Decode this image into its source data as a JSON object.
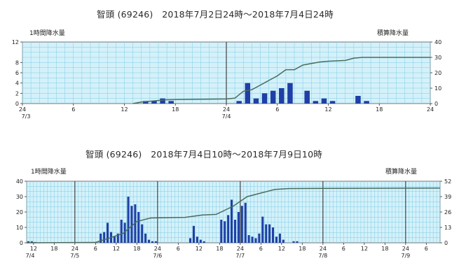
{
  "colors": {
    "plot_bg": "#d4f1fa",
    "grid": "#7fcde4",
    "bar": "#1f3fa6",
    "cumulative_line": "#4b6b5e",
    "day_divider": "#333333"
  },
  "chart_data": [
    {
      "type": "bar",
      "title": "智頭 (69246)　2018年7月2日24時～2018年7月4日24時",
      "left_axis_label": "1時間降水量",
      "right_axis_label": "積算降水量",
      "x_start_hour": 0,
      "x_end_hour": 48,
      "x_tick_hours": [
        0,
        6,
        12,
        18,
        24,
        30,
        36,
        42,
        48
      ],
      "x_tick_labels": [
        "24",
        "6",
        "12",
        "18",
        "24",
        "6",
        "12",
        "18",
        "24"
      ],
      "date_labels": [
        {
          "hour": 0,
          "text": "7/3"
        },
        {
          "hour": 24,
          "text": "7/4"
        }
      ],
      "day_dividers_hours": [
        24
      ],
      "ylim_left": [
        0,
        12
      ],
      "y_ticks_left": [
        0,
        2,
        4,
        6,
        8,
        12
      ],
      "ylim_right": [
        0,
        40
      ],
      "y_ticks_right": [
        0,
        10,
        20,
        30,
        40
      ],
      "bars": [
        {
          "hour": 14,
          "value": 0.5
        },
        {
          "hour": 15,
          "value": 0.5
        },
        {
          "hour": 16,
          "value": 1
        },
        {
          "hour": 17,
          "value": 0.5
        },
        {
          "hour": 25,
          "value": 0.5
        },
        {
          "hour": 26,
          "value": 4
        },
        {
          "hour": 27,
          "value": 1
        },
        {
          "hour": 28,
          "value": 2
        },
        {
          "hour": 29,
          "value": 2.5
        },
        {
          "hour": 30,
          "value": 3
        },
        {
          "hour": 31,
          "value": 4
        },
        {
          "hour": 33,
          "value": 2.5
        },
        {
          "hour": 34,
          "value": 0.5
        },
        {
          "hour": 35,
          "value": 1
        },
        {
          "hour": 36,
          "value": 0.5
        },
        {
          "hour": 39,
          "value": 1.5
        },
        {
          "hour": 40,
          "value": 0.5
        }
      ],
      "cumulative": [
        {
          "hour": 13,
          "value": 0
        },
        {
          "hour": 14,
          "value": 1
        },
        {
          "hour": 16,
          "value": 2
        },
        {
          "hour": 17,
          "value": 2.5
        },
        {
          "hour": 24,
          "value": 3
        },
        {
          "hour": 25,
          "value": 3.5
        },
        {
          "hour": 26,
          "value": 8
        },
        {
          "hour": 27,
          "value": 9
        },
        {
          "hour": 28,
          "value": 12
        },
        {
          "hour": 29,
          "value": 15
        },
        {
          "hour": 30,
          "value": 18
        },
        {
          "hour": 31,
          "value": 22
        },
        {
          "hour": 32,
          "value": 22
        },
        {
          "hour": 33,
          "value": 25
        },
        {
          "hour": 34,
          "value": 26
        },
        {
          "hour": 35,
          "value": 27
        },
        {
          "hour": 36,
          "value": 27.5
        },
        {
          "hour": 38,
          "value": 28
        },
        {
          "hour": 39,
          "value": 29.5
        },
        {
          "hour": 40,
          "value": 30
        },
        {
          "hour": 48,
          "value": 30
        }
      ]
    },
    {
      "type": "bar",
      "title": "智頭 (69246)　2018年7月4日10時～2018年7月9日10時",
      "left_axis_label": "1時間降水量",
      "right_axis_label": "積算降水量",
      "x_start_hour": 10,
      "x_end_hour": 130,
      "x_tick_hours": [
        12,
        18,
        24,
        30,
        36,
        42,
        48,
        54,
        60,
        66,
        72,
        78,
        84,
        90,
        96,
        102,
        108,
        114,
        120,
        126
      ],
      "x_tick_labels": [
        "12",
        "18",
        "24",
        "6",
        "12",
        "18",
        "24",
        "6",
        "12",
        "18",
        "24",
        "6",
        "12",
        "18",
        "24",
        "6",
        "12",
        "18",
        "24",
        "6"
      ],
      "date_labels": [
        {
          "hour": 10,
          "text": "7/4"
        },
        {
          "hour": 24,
          "text": "7/5"
        },
        {
          "hour": 48,
          "text": "7/6"
        },
        {
          "hour": 72,
          "text": "7/7"
        },
        {
          "hour": 96,
          "text": "7/8"
        },
        {
          "hour": 120,
          "text": "7/9"
        }
      ],
      "day_dividers_hours": [
        24,
        48,
        72,
        96,
        120
      ],
      "ylim_left": [
        0,
        40
      ],
      "y_ticks_left": [
        0,
        10,
        20,
        30,
        40
      ],
      "ylim_right": [
        0,
        520
      ],
      "y_ticks_right": [
        0,
        130,
        260,
        390,
        520
      ],
      "y_tick_labels_right": [
        "0",
        "13",
        "26",
        "39",
        "52"
      ],
      "bars": [
        {
          "hour": 10,
          "value": 1
        },
        {
          "hour": 11,
          "value": 1
        },
        {
          "hour": 12,
          "value": 0.5
        },
        {
          "hour": 31,
          "value": 6
        },
        {
          "hour": 32,
          "value": 7
        },
        {
          "hour": 33,
          "value": 13
        },
        {
          "hour": 34,
          "value": 7
        },
        {
          "hour": 35,
          "value": 4
        },
        {
          "hour": 36,
          "value": 6
        },
        {
          "hour": 37,
          "value": 15
        },
        {
          "hour": 38,
          "value": 13
        },
        {
          "hour": 39,
          "value": 30
        },
        {
          "hour": 40,
          "value": 24
        },
        {
          "hour": 41,
          "value": 25
        },
        {
          "hour": 42,
          "value": 20
        },
        {
          "hour": 43,
          "value": 12
        },
        {
          "hour": 44,
          "value": 6
        },
        {
          "hour": 45,
          "value": 2
        },
        {
          "hour": 46,
          "value": 1
        },
        {
          "hour": 47,
          "value": 1
        },
        {
          "hour": 57,
          "value": 3
        },
        {
          "hour": 58,
          "value": 11
        },
        {
          "hour": 59,
          "value": 4
        },
        {
          "hour": 60,
          "value": 2
        },
        {
          "hour": 61,
          "value": 1
        },
        {
          "hour": 66,
          "value": 15
        },
        {
          "hour": 67,
          "value": 14
        },
        {
          "hour": 68,
          "value": 18
        },
        {
          "hour": 69,
          "value": 28
        },
        {
          "hour": 70,
          "value": 15
        },
        {
          "hour": 71,
          "value": 20
        },
        {
          "hour": 72,
          "value": 24
        },
        {
          "hour": 73,
          "value": 26
        },
        {
          "hour": 74,
          "value": 5
        },
        {
          "hour": 75,
          "value": 4
        },
        {
          "hour": 76,
          "value": 3
        },
        {
          "hour": 77,
          "value": 6
        },
        {
          "hour": 78,
          "value": 17
        },
        {
          "hour": 79,
          "value": 12
        },
        {
          "hour": 80,
          "value": 12
        },
        {
          "hour": 81,
          "value": 10
        },
        {
          "hour": 82,
          "value": 4
        },
        {
          "hour": 83,
          "value": 6
        },
        {
          "hour": 84,
          "value": 2
        },
        {
          "hour": 87,
          "value": 1
        },
        {
          "hour": 88,
          "value": 1
        }
      ],
      "cumulative": [
        {
          "hour": 10,
          "value": 0
        },
        {
          "hour": 30,
          "value": 3
        },
        {
          "hour": 34,
          "value": 40
        },
        {
          "hour": 38,
          "value": 80
        },
        {
          "hour": 42,
          "value": 180
        },
        {
          "hour": 46,
          "value": 210
        },
        {
          "hour": 56,
          "value": 215
        },
        {
          "hour": 61,
          "value": 235
        },
        {
          "hour": 65,
          "value": 240
        },
        {
          "hour": 70,
          "value": 310
        },
        {
          "hour": 74,
          "value": 390
        },
        {
          "hour": 78,
          "value": 420
        },
        {
          "hour": 82,
          "value": 450
        },
        {
          "hour": 86,
          "value": 458
        },
        {
          "hour": 96,
          "value": 460
        },
        {
          "hour": 130,
          "value": 462
        }
      ]
    }
  ]
}
